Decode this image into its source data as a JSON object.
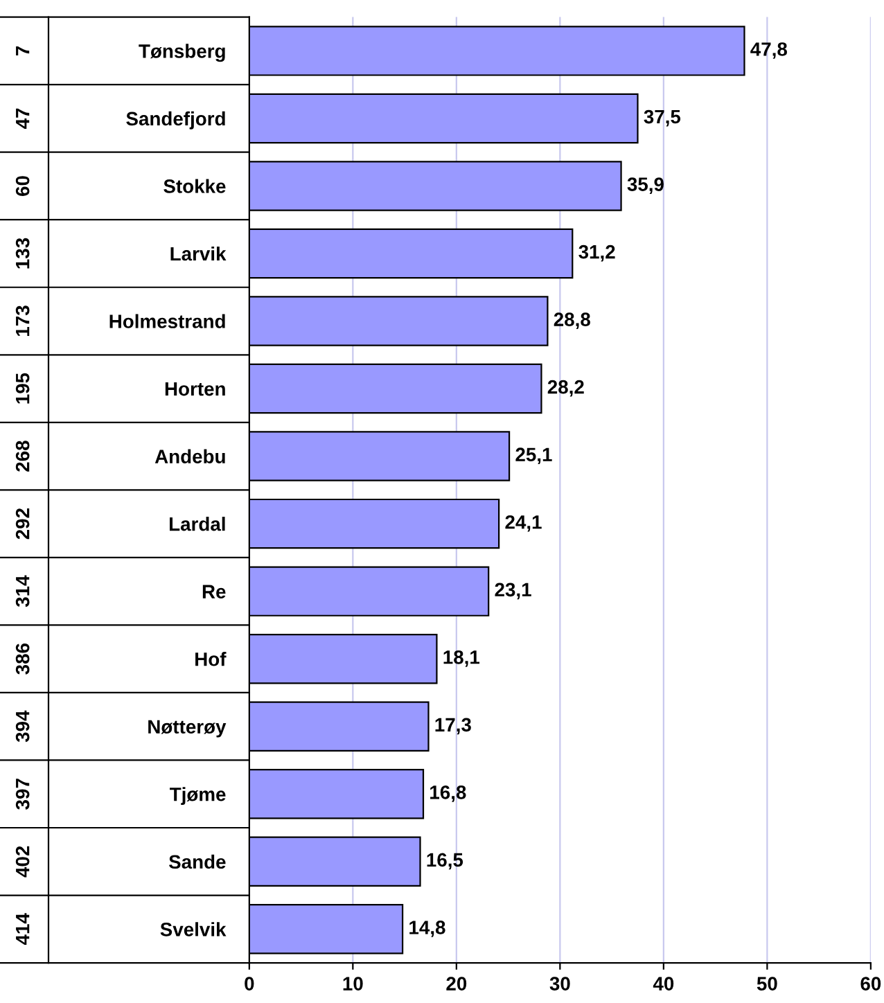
{
  "chart_data": {
    "type": "bar",
    "orientation": "horizontal",
    "categories": [
      "Tønsberg",
      "Sandefjord",
      "Stokke",
      "Larvik",
      "Holmestrand",
      "Horten",
      "Andebu",
      "Lardal",
      "Re",
      "Hof",
      "Nøtterøy",
      "Tjøme",
      "Sande",
      "Svelvik"
    ],
    "values": [
      47.8,
      37.5,
      35.9,
      31.2,
      28.8,
      28.2,
      25.1,
      24.1,
      23.1,
      18.1,
      17.3,
      16.8,
      16.5,
      14.8
    ],
    "value_labels": [
      "47,8",
      "37,5",
      "35,9",
      "31,2",
      "28,8",
      "28,2",
      "25,1",
      "24,1",
      "23,1",
      "18,1",
      "17,3",
      "16,8",
      "16,5",
      "14,8"
    ],
    "color": "#9999ff",
    "xlim": [
      0,
      60
    ],
    "xticks": [
      0,
      10,
      20,
      30,
      40,
      50,
      60
    ],
    "grid": "x",
    "annotations": [
      "7",
      "47",
      "60",
      "133",
      "173",
      "195",
      "268",
      "292",
      "314",
      "386",
      "394",
      "397",
      "402",
      "414"
    ]
  }
}
